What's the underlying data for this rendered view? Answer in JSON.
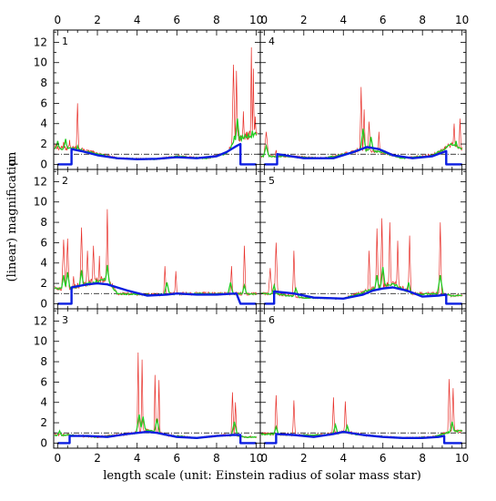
{
  "figure": {
    "xlabel": "length scale (unit: Einstein radius of solar mass star)",
    "ylabel": "(linear) magnification",
    "ylabel_symbol": "μ"
  },
  "chart_data": {
    "type": "line",
    "layout": "3 rows x 2 columns of panels sharing axes",
    "xlabel": "length scale (unit: Einstein radius of solar mass star)",
    "ylabel": "(linear) magnification μ",
    "xlim": [
      -0.2,
      10.2
    ],
    "ylim": [
      -0.5,
      13.2
    ],
    "x_ticks": [
      0,
      2,
      4,
      6,
      8,
      10
    ],
    "y_ticks": [
      0,
      2,
      4,
      6,
      8,
      10,
      12
    ],
    "top_axis_ticks_labeled": true,
    "reference_line": {
      "y": 1.0,
      "style": "dash-dot"
    },
    "series_styles": [
      {
        "key": "red",
        "color": "#e8302a",
        "style": "thin line, finest resolution"
      },
      {
        "key": "green",
        "color": "#22cc22",
        "style": "medium line, intermediate smoothing"
      },
      {
        "key": "blue",
        "color": "#0b1ee0",
        "style": "thick line, strongest smoothing"
      }
    ],
    "panels": [
      {
        "label": "1",
        "base_ranges": [
          [
            0.8,
            1.6
          ],
          [
            3.0,
            0.6
          ],
          [
            5.0,
            0.5
          ],
          [
            6.0,
            0.8
          ],
          [
            7.5,
            0.6
          ],
          [
            8.5,
            1.1
          ],
          [
            9.0,
            2.5
          ],
          [
            9.5,
            2.8
          ],
          [
            9.9,
            3.0
          ]
        ],
        "spikes": [
          [
            -0.1,
            1.8,
            0.2
          ],
          [
            0.3,
            2.0,
            0.15
          ],
          [
            0.6,
            2.2,
            0.1
          ],
          [
            1.0,
            5.8,
            0.08
          ],
          [
            8.85,
            9.6,
            0.1
          ],
          [
            9.0,
            9.0,
            0.08
          ],
          [
            9.35,
            5.0,
            0.08
          ],
          [
            9.75,
            11.3,
            0.06
          ],
          [
            9.85,
            9.2,
            0.06
          ],
          [
            9.95,
            4.5,
            0.1
          ]
        ],
        "green_peaks": [
          [
            0.0,
            2.0
          ],
          [
            0.4,
            2.2
          ],
          [
            1.0,
            1.5
          ],
          [
            8.9,
            2.5
          ],
          [
            9.05,
            4.2
          ],
          [
            9.8,
            3.0
          ]
        ],
        "blue": [
          [
            0.0,
            0.0
          ],
          [
            0.7,
            0.0
          ],
          [
            0.7,
            1.5
          ],
          [
            1.2,
            1.3
          ],
          [
            2.0,
            0.9
          ],
          [
            3.0,
            0.6
          ],
          [
            4.0,
            0.5
          ],
          [
            5.0,
            0.55
          ],
          [
            6.0,
            0.7
          ],
          [
            7.0,
            0.6
          ],
          [
            8.0,
            0.8
          ],
          [
            8.5,
            1.2
          ],
          [
            9.0,
            1.8
          ],
          [
            9.2,
            2.0
          ],
          [
            9.2,
            0.0
          ],
          [
            10.0,
            0.0
          ]
        ]
      },
      {
        "label": "4",
        "base_ranges": [
          [
            1.0,
            0.8
          ],
          [
            3.0,
            0.6
          ],
          [
            4.0,
            1.0
          ],
          [
            5.0,
            1.5
          ],
          [
            6.0,
            1.2
          ],
          [
            7.0,
            0.6
          ],
          [
            8.5,
            0.9
          ],
          [
            9.5,
            2.0
          ],
          [
            10.0,
            1.5
          ]
        ],
        "spikes": [
          [
            0.1,
            3.0,
            0.15
          ],
          [
            0.6,
            1.2,
            0.1
          ],
          [
            4.9,
            7.4,
            0.08
          ],
          [
            5.05,
            5.2,
            0.08
          ],
          [
            5.3,
            4.0,
            0.1
          ],
          [
            5.8,
            3.0,
            0.08
          ],
          [
            9.6,
            3.8,
            0.1
          ],
          [
            9.9,
            4.3,
            0.08
          ]
        ],
        "green_peaks": [
          [
            0.1,
            1.5
          ],
          [
            5.0,
            3.2
          ],
          [
            5.4,
            2.4
          ],
          [
            9.7,
            2.0
          ]
        ],
        "blue": [
          [
            0.0,
            0.0
          ],
          [
            0.65,
            0.0
          ],
          [
            0.65,
            1.0
          ],
          [
            2.0,
            0.6
          ],
          [
            3.5,
            0.6
          ],
          [
            4.5,
            1.2
          ],
          [
            5.2,
            1.7
          ],
          [
            5.8,
            1.5
          ],
          [
            6.5,
            0.9
          ],
          [
            7.5,
            0.6
          ],
          [
            8.5,
            0.8
          ],
          [
            9.2,
            1.3
          ],
          [
            9.2,
            0.0
          ],
          [
            10.0,
            0.0
          ]
        ]
      },
      {
        "label": "2",
        "base_ranges": [
          [
            0.5,
            1.5
          ],
          [
            1.5,
            2.0
          ],
          [
            2.5,
            2.5
          ],
          [
            3.0,
            1.0
          ],
          [
            5.0,
            0.9
          ],
          [
            6.0,
            1.0
          ],
          [
            8.5,
            1.0
          ],
          [
            9.5,
            1.0
          ]
        ],
        "spikes": [
          [
            0.3,
            6.1,
            0.12
          ],
          [
            0.5,
            6.2,
            0.1
          ],
          [
            0.8,
            2.5,
            0.1
          ],
          [
            1.2,
            7.3,
            0.1
          ],
          [
            1.5,
            5.0,
            0.1
          ],
          [
            1.8,
            5.5,
            0.1
          ],
          [
            2.1,
            4.5,
            0.08
          ],
          [
            2.5,
            9.1,
            0.08
          ],
          [
            5.4,
            3.5,
            0.08
          ],
          [
            5.95,
            3.0,
            0.08
          ],
          [
            8.75,
            3.5,
            0.08
          ],
          [
            9.4,
            5.5,
            0.08
          ]
        ],
        "green_peaks": [
          [
            0.3,
            2.5
          ],
          [
            0.5,
            2.8
          ],
          [
            1.2,
            3.0
          ],
          [
            2.5,
            3.5
          ],
          [
            5.5,
            1.8
          ],
          [
            8.7,
            1.8
          ],
          [
            9.4,
            1.5
          ]
        ],
        "blue": [
          [
            0.0,
            0.0
          ],
          [
            0.7,
            0.0
          ],
          [
            0.7,
            1.6
          ],
          [
            1.5,
            1.9
          ],
          [
            2.0,
            2.0
          ],
          [
            2.5,
            1.9
          ],
          [
            3.5,
            1.3
          ],
          [
            4.5,
            0.8
          ],
          [
            5.5,
            0.9
          ],
          [
            6.0,
            1.0
          ],
          [
            7.0,
            0.9
          ],
          [
            8.0,
            0.9
          ],
          [
            9.0,
            1.0
          ],
          [
            9.2,
            0.0
          ],
          [
            10.0,
            0.0
          ]
        ]
      },
      {
        "label": "5",
        "base_ranges": [
          [
            0.5,
            1.0
          ],
          [
            2.0,
            0.6
          ],
          [
            4.0,
            0.5
          ],
          [
            5.5,
            1.5
          ],
          [
            6.5,
            2.0
          ],
          [
            7.5,
            1.0
          ],
          [
            8.8,
            1.0
          ],
          [
            9.5,
            0.8
          ]
        ],
        "spikes": [
          [
            0.3,
            3.3,
            0.12
          ],
          [
            0.6,
            5.8,
            0.1
          ],
          [
            1.5,
            5.0,
            0.08
          ],
          [
            5.3,
            5.0,
            0.08
          ],
          [
            5.7,
            7.2,
            0.08
          ],
          [
            5.95,
            8.2,
            0.08
          ],
          [
            6.35,
            7.8,
            0.08
          ],
          [
            6.75,
            6.0,
            0.08
          ],
          [
            7.35,
            6.5,
            0.08
          ],
          [
            8.9,
            7.8,
            0.08
          ]
        ],
        "green_peaks": [
          [
            0.5,
            1.5
          ],
          [
            1.6,
            1.2
          ],
          [
            5.7,
            2.5
          ],
          [
            6.0,
            3.3
          ],
          [
            7.3,
            1.8
          ],
          [
            8.9,
            2.5
          ]
        ],
        "blue": [
          [
            0.0,
            0.0
          ],
          [
            0.5,
            0.0
          ],
          [
            0.5,
            1.2
          ],
          [
            1.5,
            1.0
          ],
          [
            2.5,
            0.6
          ],
          [
            4.0,
            0.5
          ],
          [
            5.0,
            0.9
          ],
          [
            5.5,
            1.3
          ],
          [
            6.0,
            1.5
          ],
          [
            6.5,
            1.6
          ],
          [
            7.2,
            1.3
          ],
          [
            8.0,
            0.7
          ],
          [
            8.8,
            0.8
          ],
          [
            9.2,
            0.9
          ],
          [
            9.2,
            0.0
          ],
          [
            10.0,
            0.0
          ]
        ]
      },
      {
        "label": "3",
        "base_ranges": [
          [
            0.5,
            0.8
          ],
          [
            2.0,
            0.6
          ],
          [
            4.0,
            1.0
          ],
          [
            4.5,
            1.3
          ],
          [
            5.5,
            0.8
          ],
          [
            7.0,
            0.5
          ],
          [
            8.5,
            0.8
          ],
          [
            9.5,
            0.6
          ]
        ],
        "spikes": [
          [
            4.05,
            8.7,
            0.06
          ],
          [
            4.25,
            8.0,
            0.06
          ],
          [
            4.9,
            6.5,
            0.06
          ],
          [
            5.1,
            6.0,
            0.06
          ],
          [
            8.8,
            4.8,
            0.08
          ],
          [
            8.95,
            3.8,
            0.08
          ]
        ],
        "green_peaks": [
          [
            0.1,
            0.9
          ],
          [
            4.1,
            2.5
          ],
          [
            4.3,
            2.3
          ],
          [
            5.0,
            2.1
          ],
          [
            8.9,
            1.8
          ]
        ],
        "blue": [
          [
            0.0,
            0.0
          ],
          [
            0.6,
            0.0
          ],
          [
            0.6,
            0.7
          ],
          [
            1.5,
            0.7
          ],
          [
            2.5,
            0.6
          ],
          [
            3.5,
            0.9
          ],
          [
            4.5,
            1.1
          ],
          [
            5.0,
            1.0
          ],
          [
            6.0,
            0.6
          ],
          [
            7.0,
            0.5
          ],
          [
            8.0,
            0.7
          ],
          [
            8.8,
            0.8
          ],
          [
            9.2,
            0.8
          ],
          [
            9.2,
            0.0
          ],
          [
            10.0,
            0.0
          ]
        ]
      },
      {
        "label": "6",
        "base_ranges": [
          [
            0.5,
            0.9
          ],
          [
            1.5,
            0.8
          ],
          [
            3.0,
            0.8
          ],
          [
            4.0,
            1.1
          ],
          [
            5.0,
            0.8
          ],
          [
            7.0,
            0.5
          ],
          [
            8.5,
            0.6
          ],
          [
            9.5,
            1.2
          ]
        ],
        "spikes": [
          [
            0.6,
            4.5,
            0.08
          ],
          [
            1.5,
            4.0,
            0.08
          ],
          [
            3.5,
            4.3,
            0.08
          ],
          [
            4.1,
            3.9,
            0.08
          ],
          [
            9.35,
            6.1,
            0.08
          ],
          [
            9.55,
            5.2,
            0.08
          ]
        ],
        "green_peaks": [
          [
            0.6,
            1.3
          ],
          [
            3.6,
            1.5
          ],
          [
            4.2,
            1.4
          ],
          [
            9.5,
            1.8
          ]
        ],
        "blue": [
          [
            0.0,
            0.0
          ],
          [
            0.6,
            0.0
          ],
          [
            0.6,
            0.9
          ],
          [
            1.5,
            0.8
          ],
          [
            2.5,
            0.6
          ],
          [
            3.5,
            0.9
          ],
          [
            4.0,
            1.1
          ],
          [
            5.0,
            0.8
          ],
          [
            6.0,
            0.6
          ],
          [
            7.0,
            0.5
          ],
          [
            8.0,
            0.5
          ],
          [
            8.8,
            0.6
          ],
          [
            9.1,
            0.7
          ],
          [
            9.1,
            0.0
          ],
          [
            10.0,
            0.0
          ]
        ]
      }
    ]
  }
}
